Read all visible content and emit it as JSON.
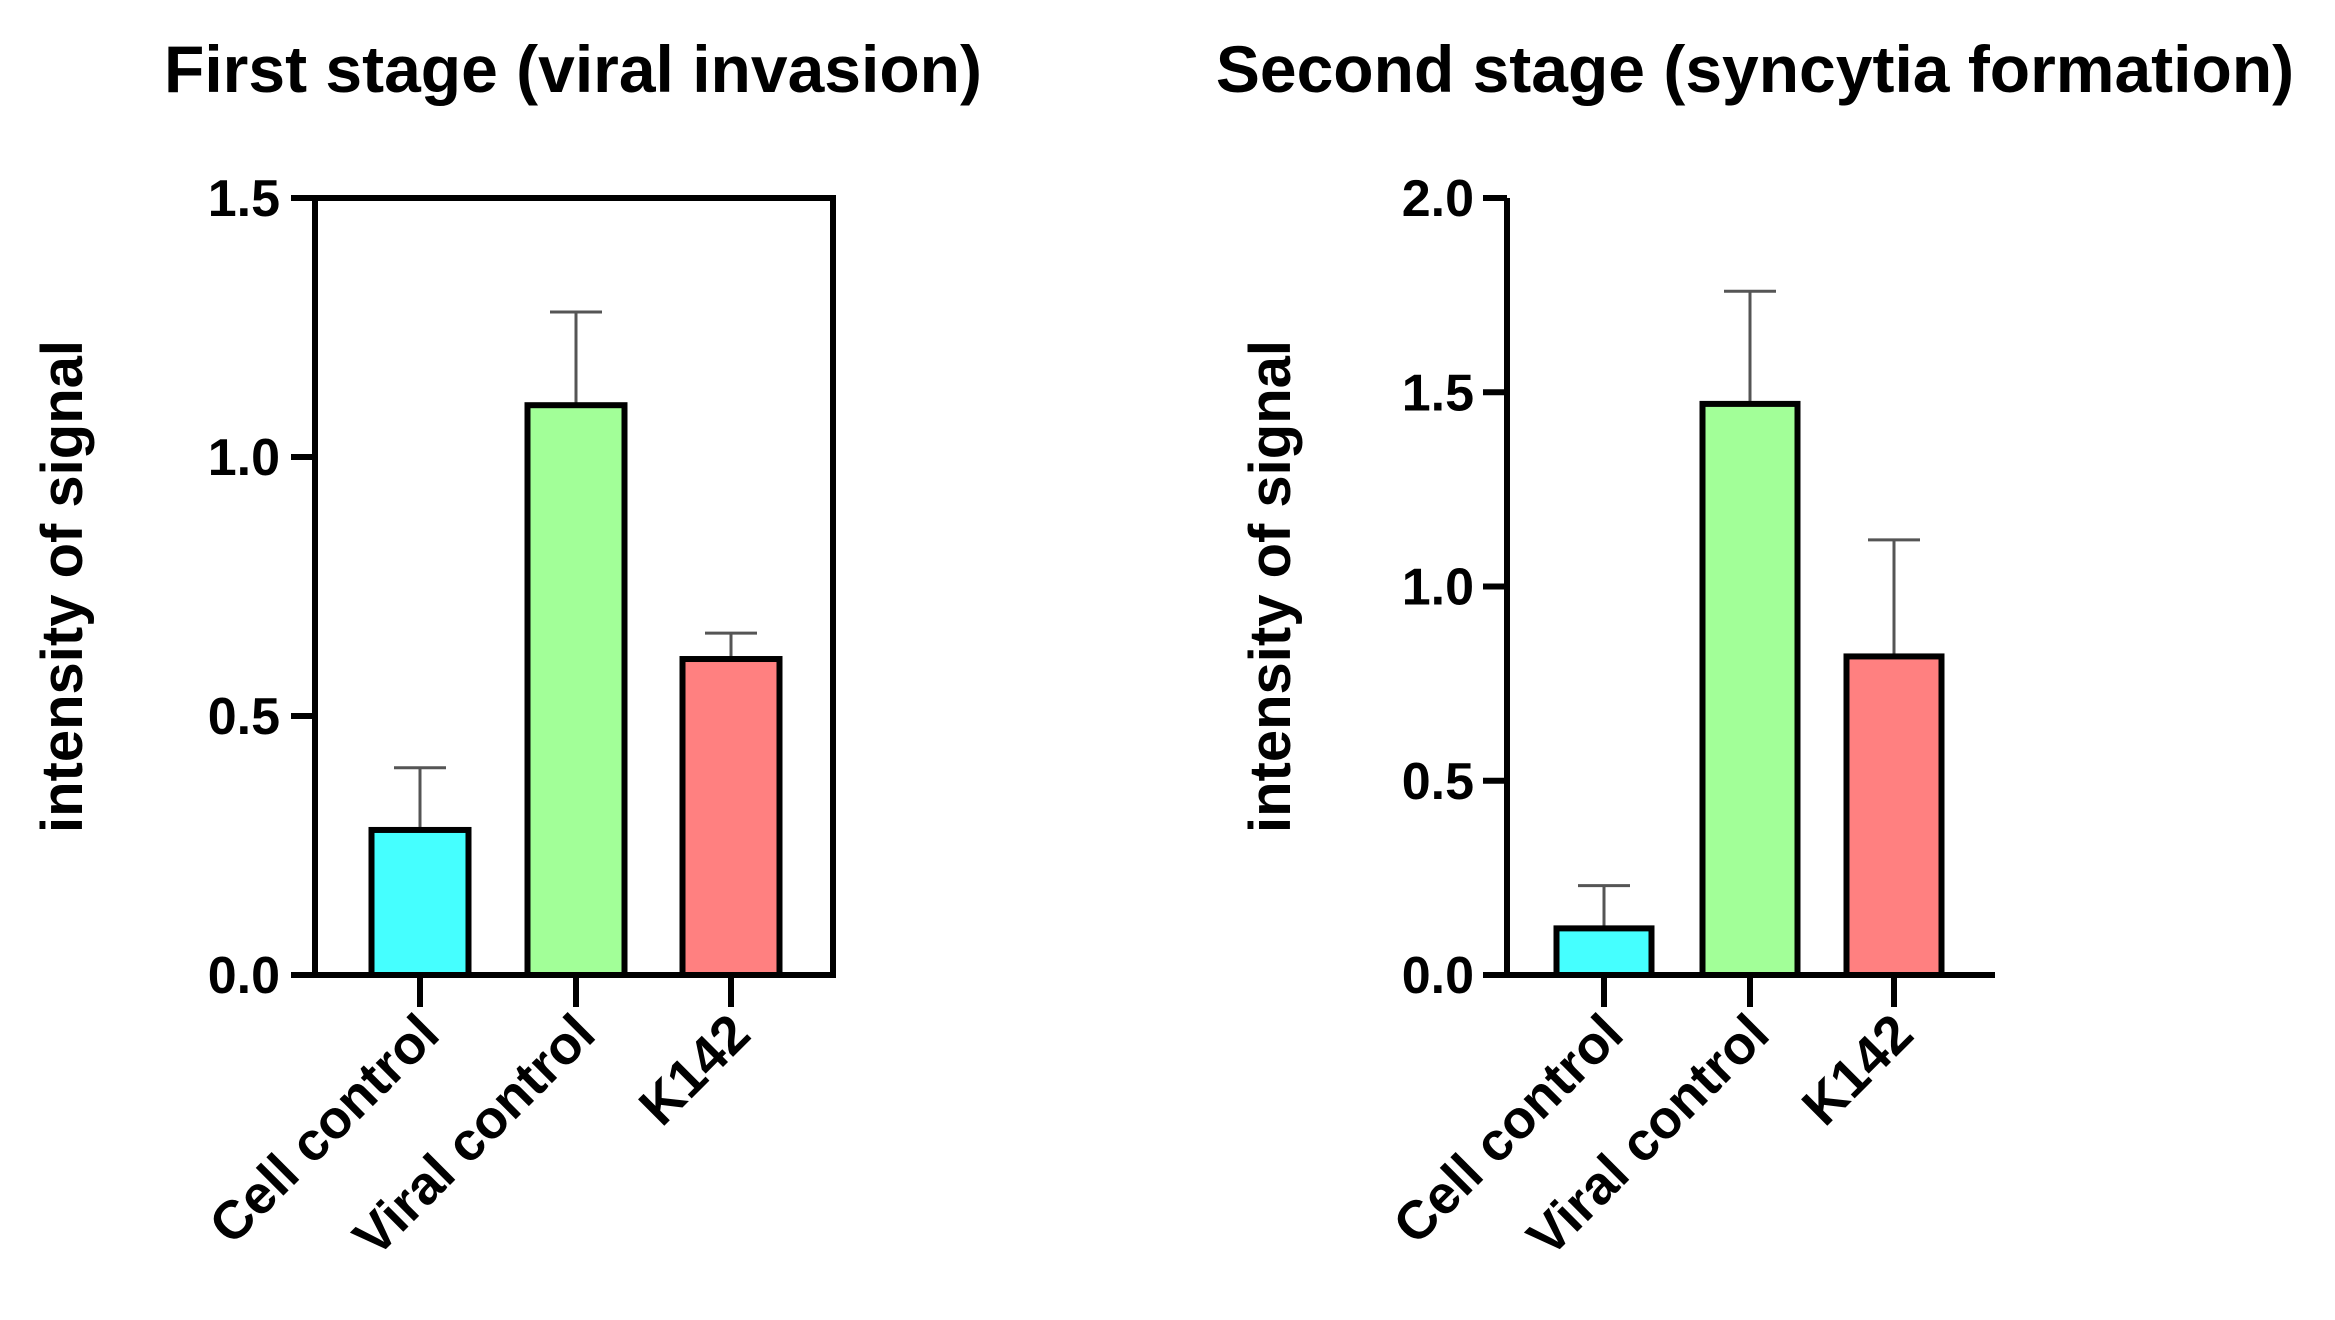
{
  "chart_data": [
    {
      "type": "bar",
      "title": "First stage (viral invasion)",
      "ylabel": "intensity of signal",
      "xlabel": "",
      "categories": [
        "Cell control",
        "Viral control",
        "K142"
      ],
      "values": [
        0.28,
        1.1,
        0.61
      ],
      "error_upper": [
        0.4,
        1.28,
        0.66
      ],
      "colors": [
        "#45FFFF",
        "#A2FF98",
        "#FF8080"
      ],
      "ylim": [
        0,
        1.5
      ],
      "yticks": [
        "0.0",
        "0.5",
        "1.0",
        "1.5"
      ],
      "box": true
    },
    {
      "type": "bar",
      "title": "Second stage (syncytia formation)",
      "ylabel": "intensity of signal",
      "xlabel": "",
      "categories": [
        "Cell control",
        "Viral control",
        "K142"
      ],
      "values": [
        0.12,
        1.47,
        0.82
      ],
      "error_upper": [
        0.23,
        1.76,
        1.12
      ],
      "colors": [
        "#45FFFF",
        "#A2FF98",
        "#FF8080"
      ],
      "ylim": [
        0,
        2.0
      ],
      "yticks": [
        "0.0",
        "0.5",
        "1.0",
        "1.5",
        "2.0"
      ],
      "box": false
    }
  ]
}
